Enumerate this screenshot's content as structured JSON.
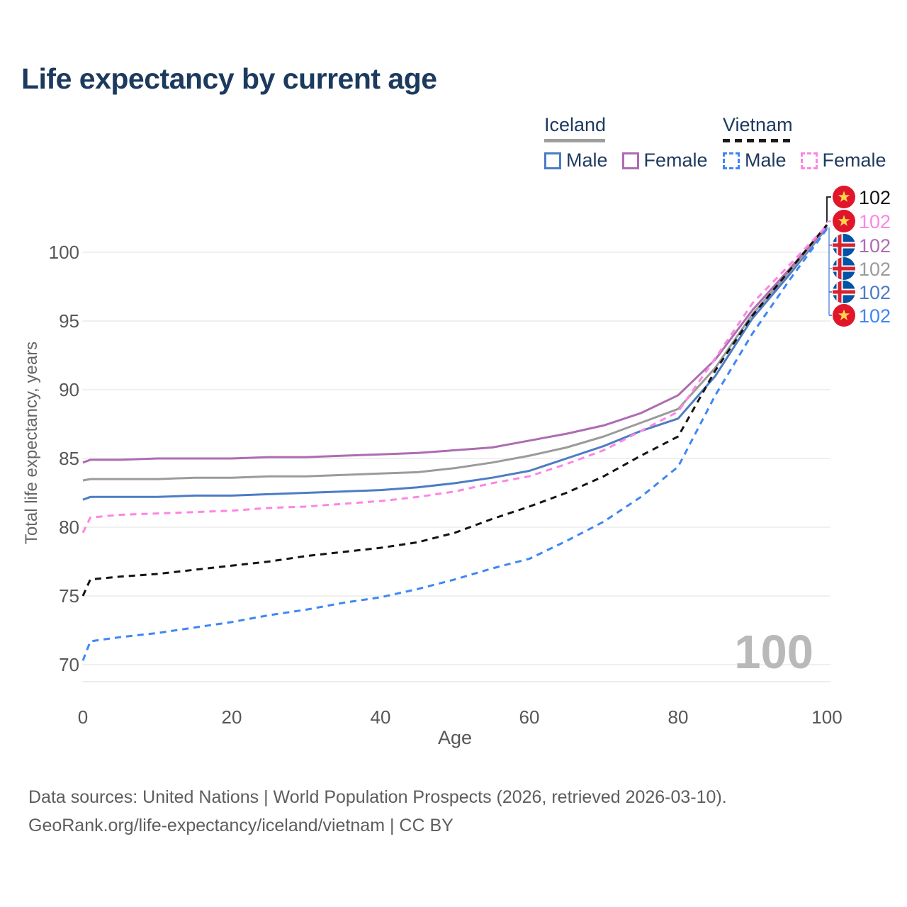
{
  "title": "Life expectancy by current age",
  "legend": {
    "groups": [
      {
        "country": "Iceland",
        "line_style": "solid",
        "underline_color": "#9e9e9e",
        "items": [
          {
            "label": "Male",
            "color": "#4d7cc4",
            "dashed": false
          },
          {
            "label": "Female",
            "color": "#ad6cb2",
            "dashed": false
          }
        ]
      },
      {
        "country": "Vietnam",
        "line_style": "dashed",
        "underline_color": "#1a1a1a",
        "items": [
          {
            "label": "Male",
            "color": "#3f86f5",
            "dashed": true
          },
          {
            "label": "Female",
            "color": "#fe85e3",
            "dashed": true
          }
        ]
      }
    ]
  },
  "chart_data": {
    "type": "line",
    "title": "Life expectancy by current age",
    "xlabel": "Age",
    "ylabel": "Total life expectancy, years",
    "xlim": [
      0,
      100
    ],
    "ylim": [
      70,
      102.5
    ],
    "xticks": [
      0,
      20,
      40,
      60,
      80,
      100
    ],
    "yticks": [
      70,
      75,
      80,
      85,
      90,
      95,
      100
    ],
    "grid": "horizontal-only",
    "legend_position": "top-right",
    "x": [
      0,
      1,
      5,
      10,
      15,
      20,
      25,
      30,
      35,
      40,
      45,
      50,
      55,
      60,
      65,
      70,
      75,
      80,
      85,
      90,
      95,
      100
    ],
    "series": [
      {
        "name": "Vietnam total",
        "country": "Vietnam",
        "sex": "total",
        "color": "#141414",
        "dashed": true,
        "flag": "vietnam",
        "end_label": "102",
        "values": [
          75.0,
          76.2,
          76.4,
          76.6,
          76.9,
          77.2,
          77.5,
          77.9,
          78.2,
          78.5,
          78.9,
          79.6,
          80.6,
          81.5,
          82.5,
          83.7,
          85.2,
          86.6,
          91.4,
          95.4,
          98.7,
          102.0
        ]
      },
      {
        "name": "Vietnam Female",
        "country": "Vietnam",
        "sex": "female",
        "color": "#fe85e3",
        "dashed": true,
        "flag": "vietnam",
        "end_label": "102",
        "values": [
          79.6,
          80.7,
          80.9,
          81.0,
          81.1,
          81.2,
          81.4,
          81.5,
          81.7,
          81.9,
          82.2,
          82.6,
          83.2,
          83.7,
          84.6,
          85.6,
          87.0,
          88.4,
          92.3,
          96.3,
          99.1,
          101.95
        ]
      },
      {
        "name": "Iceland Female",
        "country": "Iceland",
        "sex": "female",
        "color": "#ad6cb2",
        "dashed": false,
        "flag": "iceland",
        "end_label": "102",
        "values": [
          84.7,
          84.9,
          84.9,
          85.0,
          85.0,
          85.0,
          85.1,
          85.1,
          85.2,
          85.3,
          85.4,
          85.6,
          85.8,
          86.3,
          86.8,
          87.4,
          88.3,
          89.6,
          92.2,
          95.8,
          98.8,
          101.9
        ]
      },
      {
        "name": "Iceland total",
        "country": "Iceland",
        "sex": "total",
        "color": "#9b9b9b",
        "dashed": false,
        "flag": "iceland",
        "end_label": "102",
        "values": [
          83.4,
          83.5,
          83.5,
          83.5,
          83.6,
          83.6,
          83.7,
          83.7,
          83.8,
          83.9,
          84.0,
          84.3,
          84.7,
          85.2,
          85.8,
          86.6,
          87.6,
          88.6,
          91.6,
          95.5,
          98.6,
          101.85
        ]
      },
      {
        "name": "Iceland Male",
        "country": "Iceland",
        "sex": "male",
        "color": "#4d7cc4",
        "dashed": false,
        "flag": "iceland",
        "end_label": "102",
        "values": [
          82.0,
          82.2,
          82.2,
          82.2,
          82.3,
          82.3,
          82.4,
          82.5,
          82.6,
          82.7,
          82.9,
          83.2,
          83.6,
          84.1,
          85.0,
          85.9,
          87.0,
          87.9,
          91.0,
          95.2,
          98.4,
          101.8
        ]
      },
      {
        "name": "Vietnam Male",
        "country": "Vietnam",
        "sex": "male",
        "color": "#3f86f5",
        "dashed": true,
        "flag": "vietnam",
        "end_label": "102",
        "values": [
          70.3,
          71.7,
          72.0,
          72.3,
          72.7,
          73.1,
          73.6,
          74.0,
          74.5,
          74.9,
          75.5,
          76.2,
          77.0,
          77.7,
          79.0,
          80.4,
          82.2,
          84.4,
          89.6,
          94.1,
          98.0,
          101.7
        ]
      }
    ],
    "annotations": {
      "age_counter_watermark": "100"
    }
  },
  "flags": {
    "vietnam": {
      "circle": "#e0162b",
      "star": "#ffd34d"
    },
    "iceland": {
      "circle": "#0253a4",
      "cross": "#d8222f",
      "cross_outline": "#ffffff"
    }
  },
  "colors": {
    "title": "#1c3a5e",
    "axis_text": "#575757",
    "gridline": "#ececec",
    "watermark": "#b9b9b9",
    "footer": "#5d5d5d"
  },
  "watermark": "100",
  "footer": {
    "line1": "Data sources: United Nations | World Population Prospects (2026, retrieved 2026-03-10).",
    "line2": "GeoRank.org/life-expectancy/iceland/vietnam | CC BY"
  }
}
